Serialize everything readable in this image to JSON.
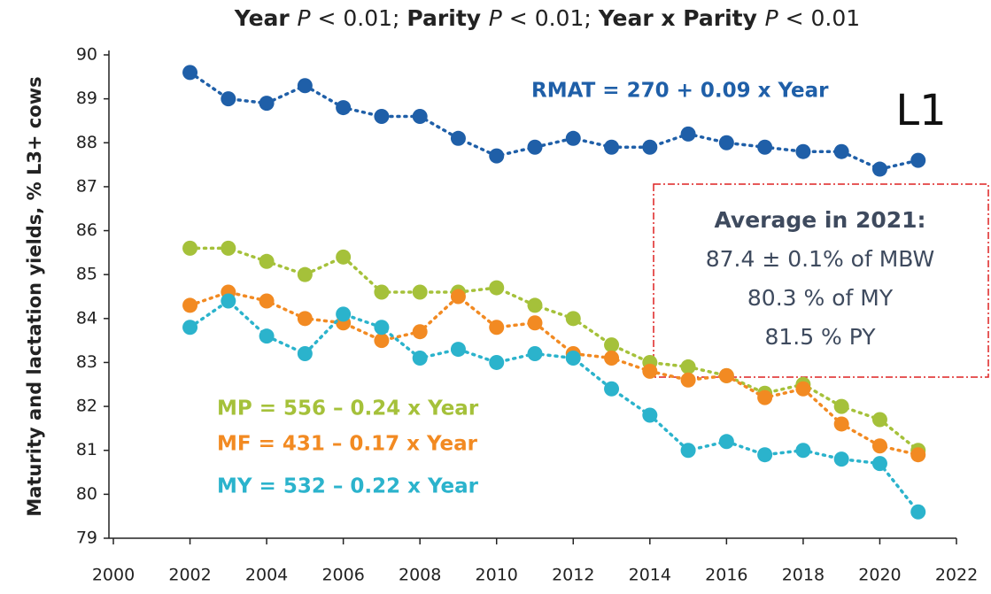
{
  "chart_data": {
    "type": "line",
    "title_parts": [
      {
        "text": "Year ",
        "style": "bold"
      },
      {
        "text": "P",
        "style": "italic"
      },
      {
        "text": " < 0.01;  ",
        "style": "normal"
      },
      {
        "text": "Parity ",
        "style": "bold"
      },
      {
        "text": "P",
        "style": "italic"
      },
      {
        "text": " < 0.01; ",
        "style": "normal"
      },
      {
        "text": "Year x Parity ",
        "style": "bold"
      },
      {
        "text": "P",
        "style": "italic"
      },
      {
        "text": " < 0.01",
        "style": "normal"
      }
    ],
    "y_label": "Maturity and lactation yields, % L3+ cows",
    "panel_label": "L1",
    "x": [
      2002,
      2003,
      2004,
      2005,
      2006,
      2007,
      2008,
      2009,
      2010,
      2011,
      2012,
      2013,
      2014,
      2015,
      2016,
      2017,
      2018,
      2019,
      2020,
      2021
    ],
    "series": [
      {
        "name": "RMAT = 270 + 0.09 x Year",
        "color": "#1f5fa8",
        "values": [
          89.6,
          89.0,
          88.9,
          89.3,
          88.8,
          88.6,
          88.6,
          88.1,
          87.7,
          87.9,
          88.1,
          87.9,
          87.9,
          88.2,
          88.0,
          87.9,
          87.8,
          87.8,
          87.4,
          87.6
        ]
      },
      {
        "name": "MP = 556 – 0.24 x Year",
        "color": "#a5c13a",
        "values": [
          85.6,
          85.6,
          85.3,
          85.0,
          85.4,
          84.6,
          84.6,
          84.6,
          84.7,
          84.3,
          84.0,
          83.4,
          83.0,
          82.9,
          82.7,
          82.3,
          82.5,
          82.0,
          81.7,
          81.0
        ]
      },
      {
        "name": "MF = 431 – 0.17 x Year",
        "color": "#f28a22",
        "values": [
          84.3,
          84.6,
          84.4,
          84.0,
          83.9,
          83.5,
          83.7,
          84.5,
          83.8,
          83.9,
          83.2,
          83.1,
          82.8,
          82.6,
          82.7,
          82.2,
          82.4,
          81.6,
          81.1,
          80.9
        ]
      },
      {
        "name": "MY = 532 – 0.22 x Year",
        "color": "#2bb3cc",
        "values": [
          83.8,
          84.4,
          83.6,
          83.2,
          84.1,
          83.8,
          83.1,
          83.3,
          83.0,
          83.2,
          83.1,
          82.4,
          81.8,
          81.0,
          81.2,
          80.9,
          81.0,
          80.8,
          80.7,
          79.6
        ]
      }
    ],
    "xlim": [
      2000,
      2022
    ],
    "xticks": [
      2000,
      2002,
      2004,
      2006,
      2008,
      2010,
      2012,
      2014,
      2016,
      2018,
      2020,
      2022
    ],
    "ylim": [
      79,
      90
    ],
    "yticks": [
      79,
      80,
      81,
      82,
      83,
      84,
      85,
      86,
      87,
      88,
      89,
      90
    ],
    "grid": false,
    "box_lines": [
      "Average in 2021:",
      "87.4 ± 0.1% of MBW",
      "80.3 % of MY",
      "81.5 % PY"
    ]
  }
}
